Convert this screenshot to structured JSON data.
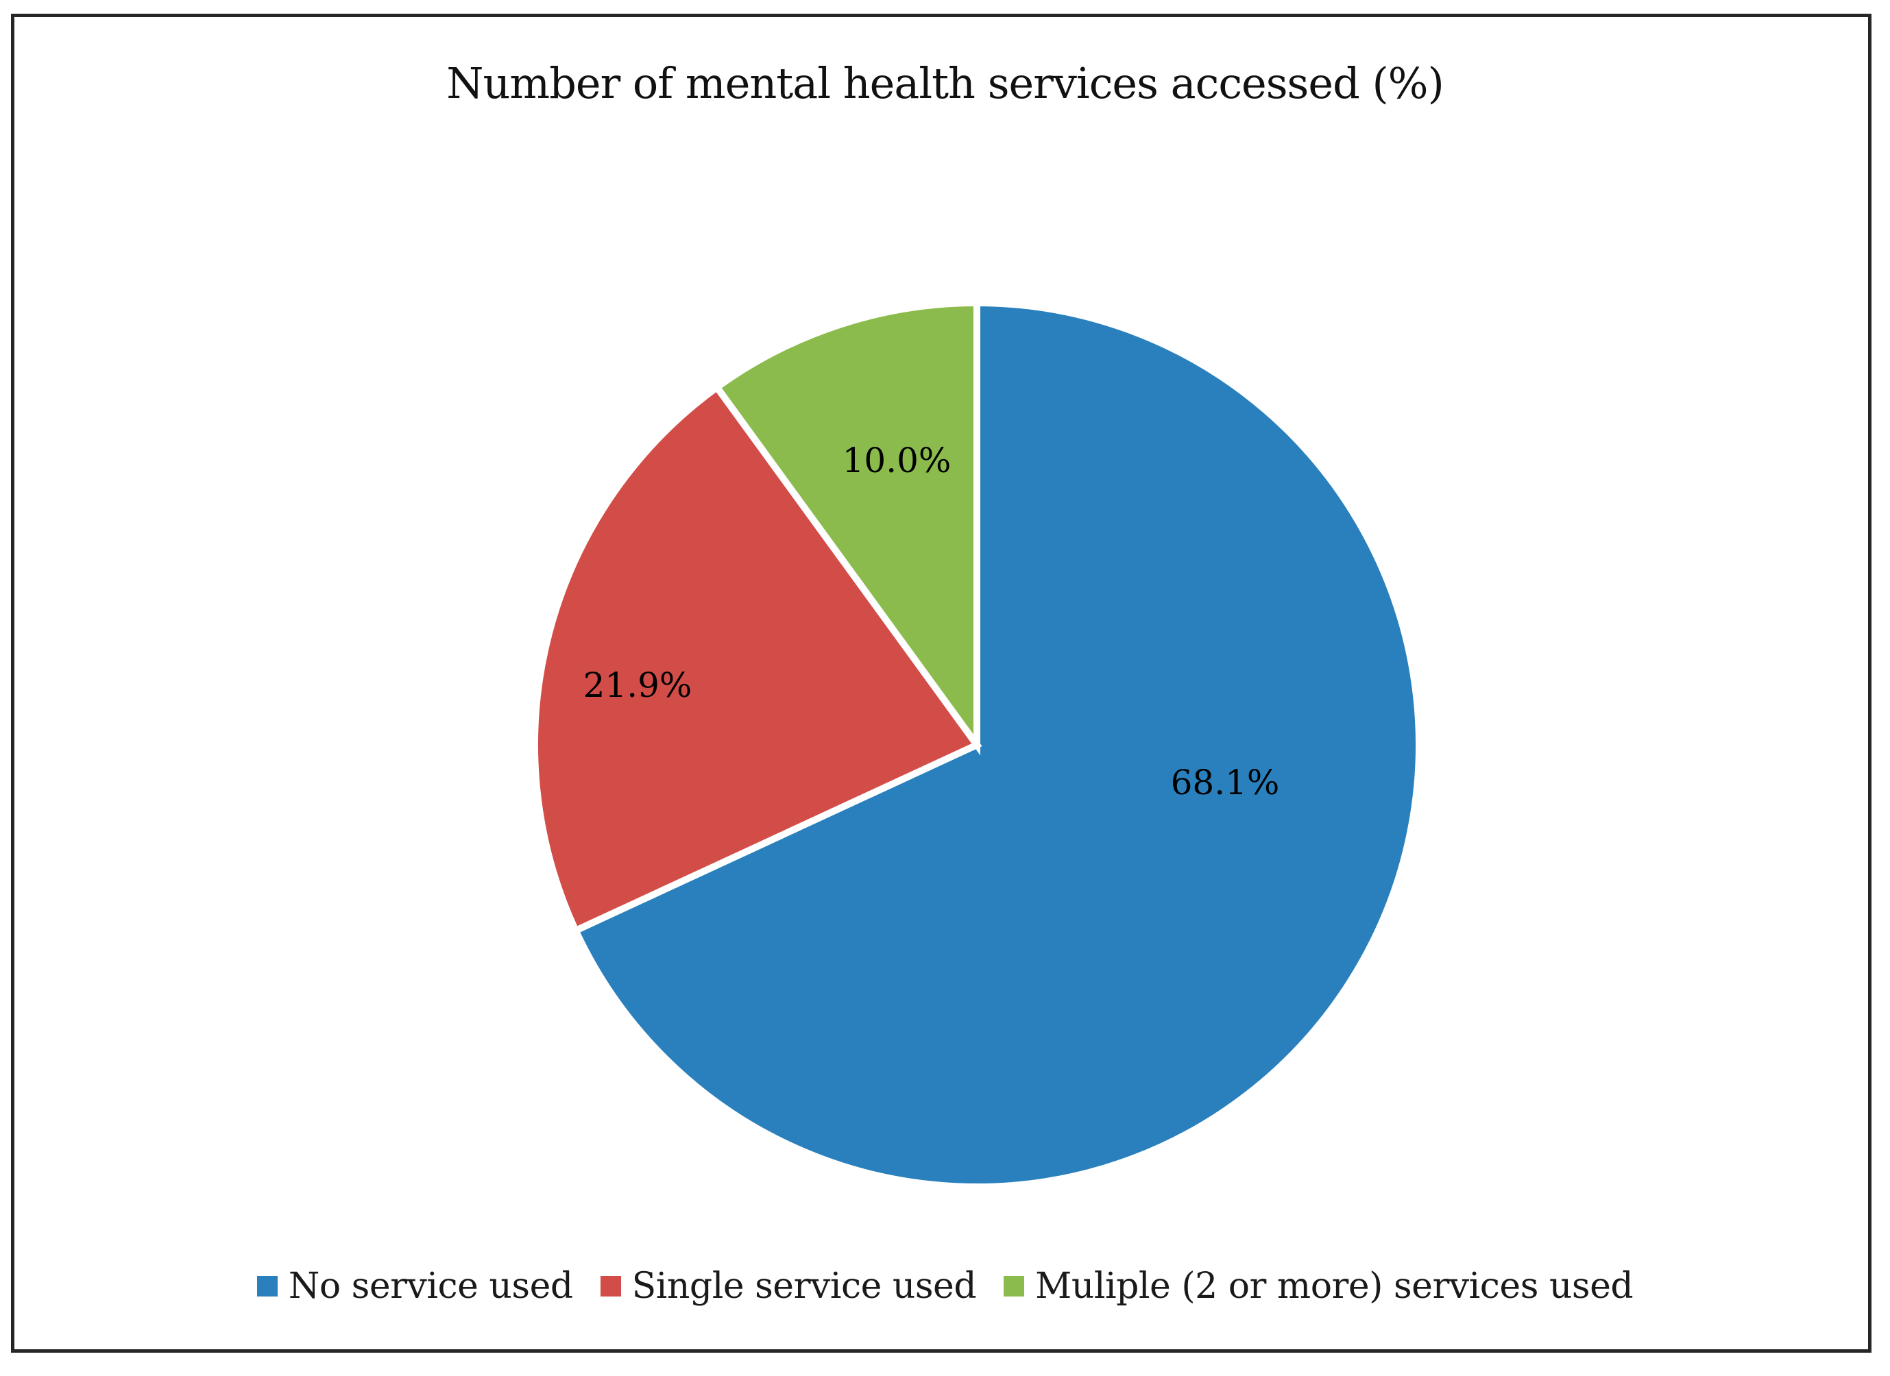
{
  "chart_data": {
    "type": "pie",
    "title": "Number of mental health services accessed (%)",
    "unit": "%",
    "start_angle_deg": 0,
    "direction": "clockwise",
    "legend_position": "bottom",
    "background_color": "#ffffff",
    "frame_border_color": "#262626",
    "slice_separator_color": "#ffffff",
    "slices": [
      {
        "label": "No service used",
        "value": 68.1,
        "label_text": "68.1%",
        "color": "#2980BD"
      },
      {
        "label": "Single service used",
        "value": 21.9,
        "label_text": "21.9%",
        "color": "#D34D48"
      },
      {
        "label": "Muliple (2 or more) services used",
        "value": 10.0,
        "label_text": "10.0%",
        "color": "#8BBB4D"
      }
    ]
  }
}
